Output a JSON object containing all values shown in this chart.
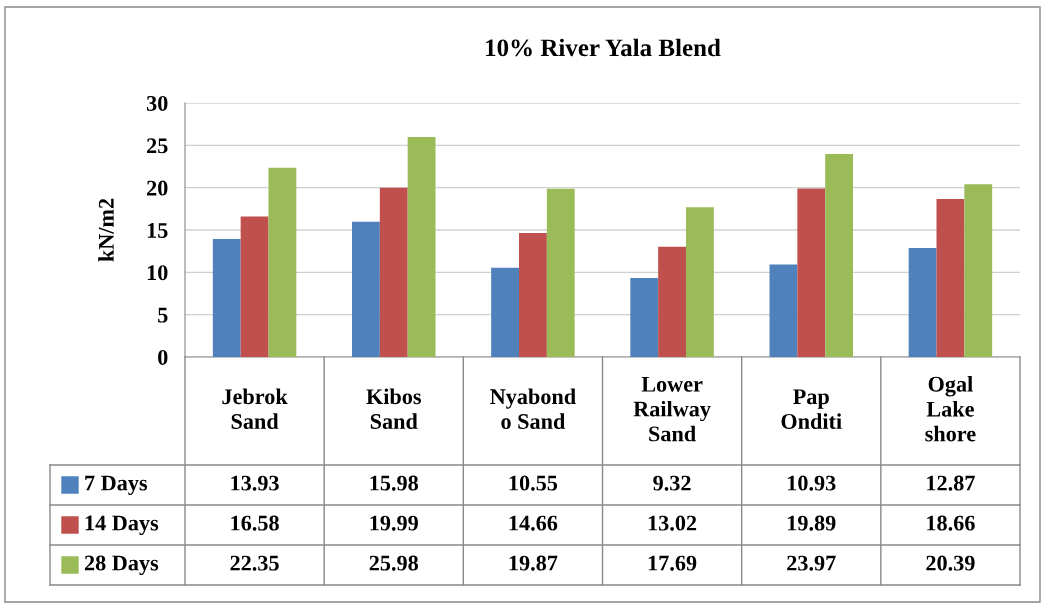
{
  "chart_data": {
    "type": "bar",
    "title": "10% River Yala Blend",
    "ylabel": "kN/m2",
    "categories": [
      "Jebrok\nSand",
      "Kibos\nSand",
      "Nyabond\no Sand",
      "Lower\nRailway\nSand",
      "Pap\nOnditi",
      "Ogal\nLake\nshore"
    ],
    "series": [
      {
        "name": "7 Days",
        "color": "#4f81bd",
        "values": [
          13.93,
          15.98,
          10.55,
          9.32,
          10.93,
          12.87
        ]
      },
      {
        "name": "14 Days",
        "color": "#c0504d",
        "values": [
          16.58,
          19.99,
          14.66,
          13.02,
          19.89,
          18.66
        ]
      },
      {
        "name": "28 Days",
        "color": "#9bbb59",
        "values": [
          22.35,
          25.98,
          19.87,
          17.69,
          23.97,
          20.39
        ]
      }
    ],
    "ylim": [
      0,
      30
    ],
    "yticks": [
      0,
      5,
      10,
      15,
      20,
      25,
      30
    ],
    "grid": "y",
    "legend": "bottom",
    "data_labels": true
  }
}
